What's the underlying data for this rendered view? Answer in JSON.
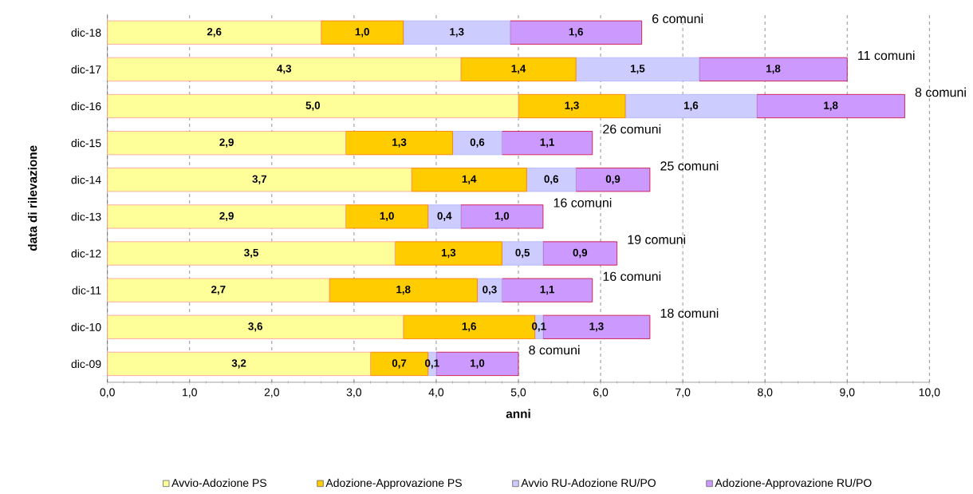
{
  "chart_data": {
    "type": "bar",
    "orientation": "horizontal",
    "stacked": true,
    "xlabel": "anni",
    "ylabel": "data di rilevazione",
    "categories": [
      "dic-18",
      "dic-17",
      "dic-16",
      "dic-15",
      "dic-14",
      "dic-13",
      "dic-12",
      "dic-11",
      "dic-10",
      "dic-09"
    ],
    "series": [
      {
        "name": "Avvio-Adozione PS",
        "color": "#ffff99",
        "values": [
          2.6,
          4.3,
          5.0,
          2.9,
          3.7,
          2.9,
          3.5,
          2.7,
          3.6,
          3.2
        ],
        "value_labels": [
          "2,6",
          "4,3",
          "5,0",
          "2,9",
          "3,7",
          "2,9",
          "3,5",
          "2,7",
          "3,6",
          "3,2"
        ]
      },
      {
        "name": "Adozione-Approvazione PS",
        "color": "#ffcc00",
        "values": [
          1.0,
          1.4,
          1.3,
          1.3,
          1.4,
          1.0,
          1.3,
          1.8,
          1.6,
          0.7
        ],
        "value_labels": [
          "1,0",
          "1,4",
          "1,3",
          "1,3",
          "1,4",
          "1,0",
          "1,3",
          "1,8",
          "1,6",
          "0,7"
        ]
      },
      {
        "name": "Avvio RU-Adozione RU/PO",
        "color": "#ccccff",
        "values": [
          1.3,
          1.5,
          1.6,
          0.6,
          0.6,
          0.4,
          0.5,
          0.3,
          0.1,
          0.1
        ],
        "value_labels": [
          "1,3",
          "1,5",
          "1,6",
          "0,6",
          "0,6",
          "0,4",
          "0,5",
          "0,3",
          "0,1",
          "0,1"
        ]
      },
      {
        "name": "Adozione-Approvazione RU/PO",
        "color": "#cc99ff",
        "values": [
          1.6,
          1.8,
          1.8,
          1.1,
          0.9,
          1.0,
          0.9,
          1.1,
          1.3,
          1.0
        ],
        "value_labels": [
          "1,6",
          "1,8",
          "1,8",
          "1,1",
          "0,9",
          "1,0",
          "0,9",
          "1,1",
          "1,3",
          "1,0"
        ]
      }
    ],
    "xlim": [
      0,
      10
    ],
    "xticks": [
      {
        "value": 0,
        "label": "0,0"
      },
      {
        "value": 1,
        "label": "1,0"
      },
      {
        "value": 2,
        "label": "2,0"
      },
      {
        "value": 3,
        "label": "3,0"
      },
      {
        "value": 4,
        "label": "4,0"
      },
      {
        "value": 5,
        "label": "5,0"
      },
      {
        "value": 6,
        "label": "6,0"
      },
      {
        "value": 7,
        "label": "7,0"
      },
      {
        "value": 8,
        "label": "8,0"
      },
      {
        "value": 9,
        "label": "9,0"
      },
      {
        "value": 10,
        "label": "10,0"
      }
    ],
    "grid": "x",
    "legend": "bottom",
    "annotations": [
      "6 comuni",
      "11 comuni",
      "8 comuni",
      "26 comuni",
      "25 comuni",
      "16 comuni",
      "19 comuni",
      "16 comuni",
      "18 comuni",
      "8 comuni"
    ]
  }
}
